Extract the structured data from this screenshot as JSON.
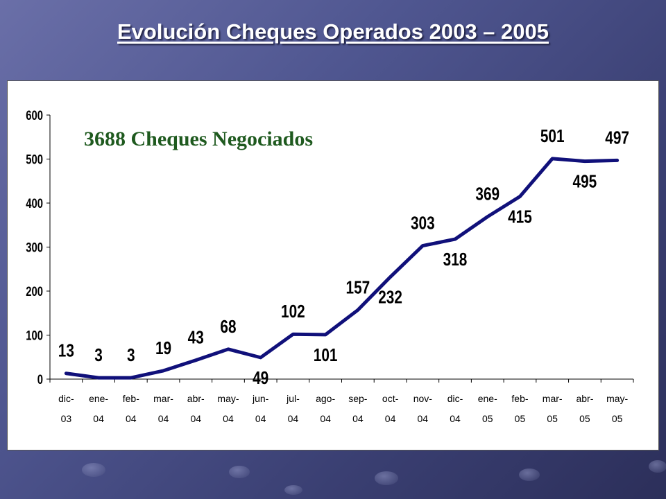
{
  "slide": {
    "title": "Evolución Cheques  Operados 2003 – 2005",
    "background_color": "#4f5690"
  },
  "chart_data": {
    "type": "line",
    "title": "",
    "annotation": "3688 Cheques Negociados",
    "annotation_color": "#1f5a1f",
    "line_color": "#10107a",
    "categories": [
      [
        "dic-",
        "03"
      ],
      [
        "ene-",
        "04"
      ],
      [
        "feb-",
        "04"
      ],
      [
        "mar-",
        "04"
      ],
      [
        "abr-",
        "04"
      ],
      [
        "may-",
        "04"
      ],
      [
        "jun-",
        "04"
      ],
      [
        "jul-",
        "04"
      ],
      [
        "ago-",
        "04"
      ],
      [
        "sep-",
        "04"
      ],
      [
        "oct-",
        "04"
      ],
      [
        "nov-",
        "04"
      ],
      [
        "dic-",
        "04"
      ],
      [
        "ene-",
        "05"
      ],
      [
        "feb-",
        "05"
      ],
      [
        "mar-",
        "05"
      ],
      [
        "abr-",
        "05"
      ],
      [
        "may-",
        "05"
      ]
    ],
    "values": [
      13,
      3,
      3,
      19,
      43,
      68,
      49,
      102,
      101,
      157,
      232,
      303,
      318,
      369,
      415,
      501,
      495,
      497
    ],
    "ylim": [
      0,
      600
    ],
    "yticks": [
      0,
      100,
      200,
      300,
      400,
      500,
      600
    ],
    "grid": false,
    "data_labels": [
      {
        "text": "13",
        "x": 0.5,
        "y": 13
      },
      {
        "text": "3",
        "x": 1.5,
        "y": 3
      },
      {
        "text": "3",
        "x": 2.5,
        "y": 3
      },
      {
        "text": "19",
        "x": 3.5,
        "y": 19
      },
      {
        "text": "43",
        "x": 4.5,
        "y": 43
      },
      {
        "text": "68",
        "x": 5.5,
        "y": 68
      },
      {
        "text": "49",
        "x": 6.5,
        "y": 49
      },
      {
        "text": "102",
        "x": 7.5,
        "y": 102
      },
      {
        "text": "101",
        "x": 8.5,
        "y": 101
      },
      {
        "text": "157",
        "x": 9.5,
        "y": 157
      },
      {
        "text": "232",
        "x": 10.5,
        "y": 232
      },
      {
        "text": "303",
        "x": 11.5,
        "y": 303
      },
      {
        "text": "318",
        "x": 12.5,
        "y": 318
      },
      {
        "text": "369",
        "x": 13.5,
        "y": 369
      },
      {
        "text": "415",
        "x": 14.5,
        "y": 415
      },
      {
        "text": "501",
        "x": 15.5,
        "y": 501
      },
      {
        "text": "495",
        "x": 16.5,
        "y": 495
      },
      {
        "text": "497",
        "x": 17.5,
        "y": 497
      }
    ]
  }
}
